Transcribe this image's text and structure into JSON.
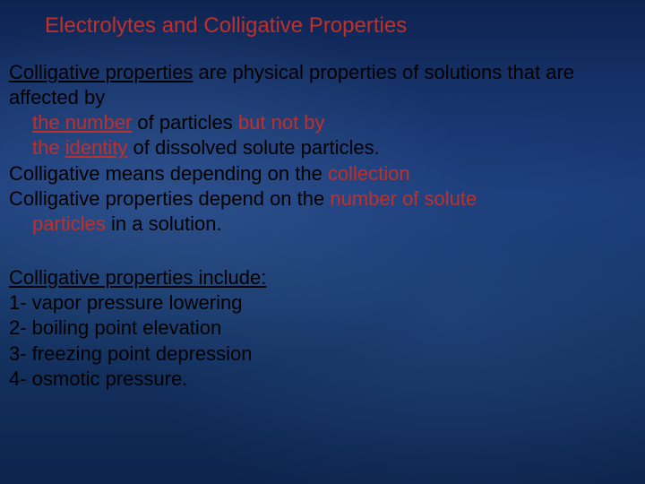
{
  "background": {
    "gradient_colors": [
      "#0e2350",
      "#16336a",
      "#1a3b78",
      "#153667",
      "#122e5a",
      "#0d244c"
    ],
    "highlight_colors": [
      "rgba(80,120,180,0.35)",
      "rgba(60,100,170,0.25)"
    ]
  },
  "title": {
    "text": "Electrolytes and Colligative Properties",
    "color": "#c0302a",
    "fontsize": 24
  },
  "body": {
    "color": "#000000",
    "accent_color": "#c0302a",
    "fontsize": 22,
    "para1": {
      "lead": "Colligative properties",
      "t1": " are physical properties of solutions that are affected by ",
      "hl1": "the number",
      "t2": " of particles ",
      "hl2": "but not by the identity",
      "t3": " of dissolved solute particles."
    },
    "para2": {
      "t1": "Colligative means depending on the ",
      "hl1": "collection"
    },
    "para3": {
      "t1": "Colligative properties depend on the ",
      "hl1": "number of solute particles",
      "t2": " in a solution."
    },
    "list_heading": "Colligative properties include:",
    "items": [
      "1- vapor pressure lowering",
      "2- boiling point elevation",
      "3- freezing point depression",
      "4- osmotic pressure."
    ]
  }
}
